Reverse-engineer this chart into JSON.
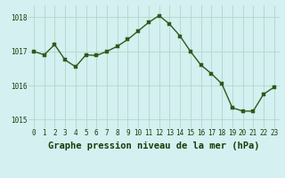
{
  "x": [
    0,
    1,
    2,
    3,
    4,
    5,
    6,
    7,
    8,
    9,
    10,
    11,
    12,
    13,
    14,
    15,
    16,
    17,
    18,
    19,
    20,
    21,
    22,
    23
  ],
  "y": [
    1017.0,
    1016.9,
    1017.2,
    1016.75,
    1016.55,
    1016.9,
    1016.88,
    1017.0,
    1017.15,
    1017.35,
    1017.6,
    1017.85,
    1018.05,
    1017.8,
    1017.45,
    1017.0,
    1016.6,
    1016.35,
    1016.05,
    1015.35,
    1015.25,
    1015.25,
    1015.75,
    1015.95
  ],
  "line_color": "#2d5a1b",
  "marker_color": "#2d5a1b",
  "bg_color": "#d4f0f0",
  "grid_color": "#b0d8cc",
  "xlabel": "Graphe pression niveau de la mer (hPa)",
  "xlabel_color": "#1a3a0a",
  "ylim": [
    1014.75,
    1018.35
  ],
  "yticks": [
    1015,
    1016,
    1017,
    1018
  ],
  "xticks": [
    0,
    1,
    2,
    3,
    4,
    5,
    6,
    7,
    8,
    9,
    10,
    11,
    12,
    13,
    14,
    15,
    16,
    17,
    18,
    19,
    20,
    21,
    22,
    23
  ],
  "tick_fontsize": 5.5,
  "xlabel_fontsize": 7.5,
  "marker_size": 2.5,
  "line_width": 1.0
}
